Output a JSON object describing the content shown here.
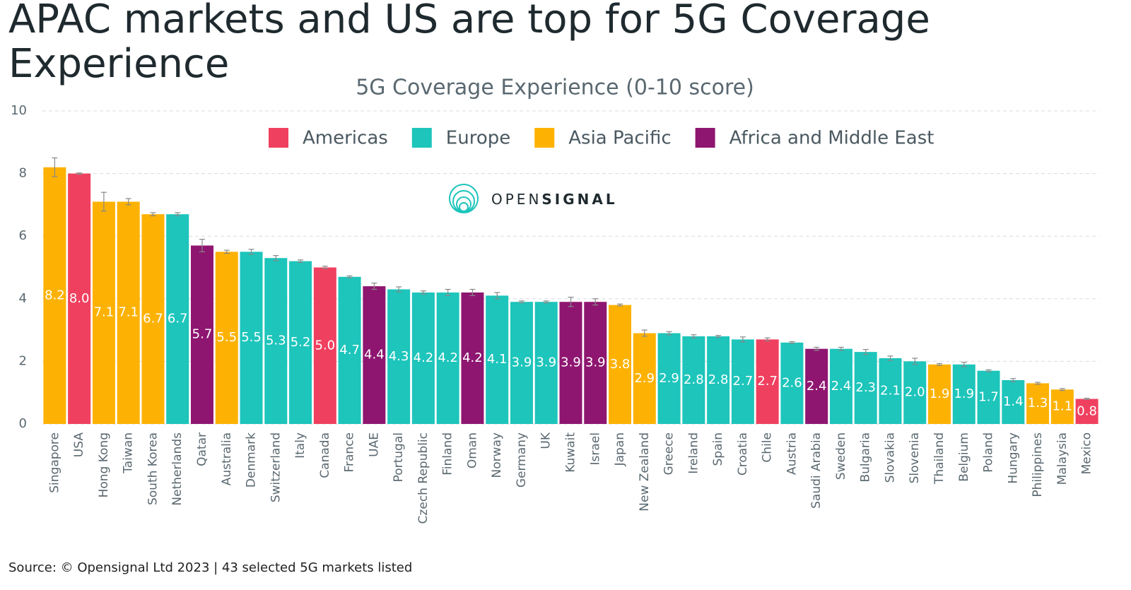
{
  "chart_data": {
    "type": "bar",
    "title": "APAC markets and US are top for 5G Coverage Experience",
    "subtitle": "5G Coverage Experience (0-10 score)",
    "watermark": {
      "light": "OPEN",
      "bold": "SIGNAL"
    },
    "source": "Source: © Opensignal Ltd 2023 | 43 selected 5G markets listed",
    "categories": [
      "Singapore",
      "USA",
      "Hong Kong",
      "Taiwan",
      "South Korea",
      "Netherlands",
      "Qatar",
      "Australia",
      "Denmark",
      "Switzerland",
      "Italy",
      "Canada",
      "France",
      "UAE",
      "Portugal",
      "Czech Republic",
      "Finland",
      "Oman",
      "Norway",
      "Germany",
      "UK",
      "Kuwait",
      "Israel",
      "Japan",
      "New Zealand",
      "Greece",
      "Ireland",
      "Spain",
      "Croatia",
      "Chile",
      "Austria",
      "Saudi Arabia",
      "Sweden",
      "Bulgaria",
      "Slovakia",
      "Slovenia",
      "Thailand",
      "Belgium",
      "Poland",
      "Hungary",
      "Philippines",
      "Malaysia",
      "Mexico"
    ],
    "ylim": [
      0,
      10
    ],
    "yticks": [
      0,
      2,
      4,
      6,
      8,
      10
    ],
    "grid": true,
    "series": [
      {
        "name": "Americas",
        "color": "#f0405f",
        "values": [
          null,
          8.0,
          null,
          null,
          null,
          null,
          null,
          null,
          null,
          null,
          null,
          5.0,
          null,
          null,
          null,
          null,
          null,
          null,
          null,
          null,
          null,
          null,
          null,
          null,
          null,
          null,
          null,
          null,
          null,
          2.7,
          null,
          null,
          null,
          null,
          null,
          null,
          null,
          null,
          null,
          null,
          null,
          null,
          0.8
        ],
        "value_labels": [
          null,
          "8.0",
          null,
          null,
          null,
          null,
          null,
          null,
          null,
          null,
          null,
          "5.0",
          null,
          null,
          null,
          null,
          null,
          null,
          null,
          null,
          null,
          null,
          null,
          null,
          null,
          null,
          null,
          null,
          null,
          "2.7",
          null,
          null,
          null,
          null,
          null,
          null,
          null,
          null,
          null,
          null,
          null,
          null,
          "0.8"
        ],
        "errors": [
          null,
          0.02,
          null,
          null,
          null,
          null,
          null,
          null,
          null,
          null,
          null,
          0.04,
          null,
          null,
          null,
          null,
          null,
          null,
          null,
          null,
          null,
          null,
          null,
          null,
          null,
          null,
          null,
          null,
          null,
          0.05,
          null,
          null,
          null,
          null,
          null,
          null,
          null,
          null,
          null,
          null,
          null,
          null,
          0.02
        ]
      },
      {
        "name": "Europe",
        "color": "#1dc5bb",
        "values": [
          null,
          null,
          null,
          null,
          null,
          6.7,
          null,
          null,
          5.5,
          5.3,
          5.2,
          null,
          4.7,
          null,
          4.3,
          4.2,
          4.2,
          null,
          4.1,
          3.9,
          3.9,
          null,
          null,
          null,
          null,
          2.9,
          2.8,
          2.8,
          2.7,
          null,
          2.6,
          null,
          2.4,
          2.3,
          2.1,
          2.0,
          null,
          1.9,
          1.7,
          1.4,
          null,
          null,
          null
        ],
        "value_labels": [
          null,
          null,
          null,
          null,
          null,
          "6.7",
          null,
          null,
          "5.5",
          "5.3",
          "5.2",
          null,
          "4.7",
          null,
          "4.3",
          "4.2",
          "4.2",
          null,
          "4.1",
          "3.9",
          "3.9",
          null,
          null,
          null,
          null,
          "2.9",
          "2.8",
          "2.8",
          "2.7",
          null,
          "2.6",
          null,
          "2.4",
          "2.3",
          "2.1",
          "2.0",
          null,
          "1.9",
          "1.7",
          "1.4",
          null,
          null,
          null
        ],
        "errors": [
          null,
          null,
          null,
          null,
          null,
          0.05,
          null,
          null,
          0.08,
          0.08,
          0.04,
          null,
          0.03,
          null,
          0.08,
          0.05,
          0.1,
          null,
          0.1,
          0.03,
          0.03,
          null,
          null,
          null,
          null,
          0.05,
          0.05,
          0.03,
          0.08,
          null,
          0.03,
          null,
          0.05,
          0.08,
          0.07,
          0.1,
          null,
          0.07,
          0.03,
          0.05,
          null,
          null,
          null
        ]
      },
      {
        "name": "Asia Pacific",
        "color": "#fdb203",
        "values": [
          8.2,
          null,
          7.1,
          7.1,
          6.7,
          null,
          null,
          5.5,
          null,
          null,
          null,
          null,
          null,
          null,
          null,
          null,
          null,
          null,
          null,
          null,
          null,
          null,
          null,
          3.8,
          2.9,
          null,
          null,
          null,
          null,
          null,
          null,
          null,
          null,
          null,
          null,
          null,
          1.9,
          null,
          null,
          null,
          1.3,
          1.1,
          null
        ],
        "value_labels": [
          "8.2",
          null,
          "7.1",
          "7.1",
          "6.7",
          null,
          null,
          "5.5",
          null,
          null,
          null,
          null,
          null,
          null,
          null,
          null,
          null,
          null,
          null,
          null,
          null,
          null,
          null,
          "3.8",
          "2.9",
          null,
          null,
          null,
          null,
          null,
          null,
          null,
          null,
          null,
          null,
          null,
          "1.9",
          null,
          null,
          null,
          "1.3",
          "1.1",
          null
        ],
        "errors": [
          0.3,
          null,
          0.3,
          0.1,
          0.05,
          null,
          null,
          0.05,
          null,
          null,
          null,
          null,
          null,
          null,
          null,
          null,
          null,
          null,
          null,
          null,
          null,
          null,
          null,
          0.03,
          0.1,
          null,
          null,
          null,
          null,
          null,
          null,
          null,
          null,
          null,
          null,
          null,
          0.03,
          null,
          null,
          null,
          0.03,
          0.03,
          null
        ]
      },
      {
        "name": "Africa and Middle East",
        "color": "#8e1670",
        "values": [
          null,
          null,
          null,
          null,
          null,
          null,
          5.7,
          null,
          null,
          null,
          null,
          null,
          null,
          4.4,
          null,
          null,
          null,
          4.2,
          null,
          null,
          null,
          3.9,
          3.9,
          null,
          null,
          null,
          null,
          null,
          null,
          null,
          null,
          2.4,
          null,
          null,
          null,
          null,
          null,
          null,
          null,
          null,
          null,
          null,
          null
        ],
        "value_labels": [
          null,
          null,
          null,
          null,
          null,
          null,
          "5.7",
          null,
          null,
          null,
          null,
          null,
          null,
          "4.4",
          null,
          null,
          null,
          "4.2",
          null,
          null,
          null,
          "3.9",
          "3.9",
          null,
          null,
          null,
          null,
          null,
          null,
          null,
          null,
          "2.4",
          null,
          null,
          null,
          null,
          null,
          null,
          null,
          null,
          null,
          null,
          null
        ],
        "errors": [
          null,
          null,
          null,
          null,
          null,
          null,
          0.2,
          null,
          null,
          null,
          null,
          null,
          null,
          0.1,
          null,
          null,
          null,
          0.1,
          null,
          null,
          null,
          0.15,
          0.1,
          null,
          null,
          null,
          null,
          null,
          null,
          null,
          null,
          0.05,
          null,
          null,
          null,
          null,
          null,
          null,
          null,
          null,
          null,
          null,
          null
        ]
      }
    ]
  }
}
